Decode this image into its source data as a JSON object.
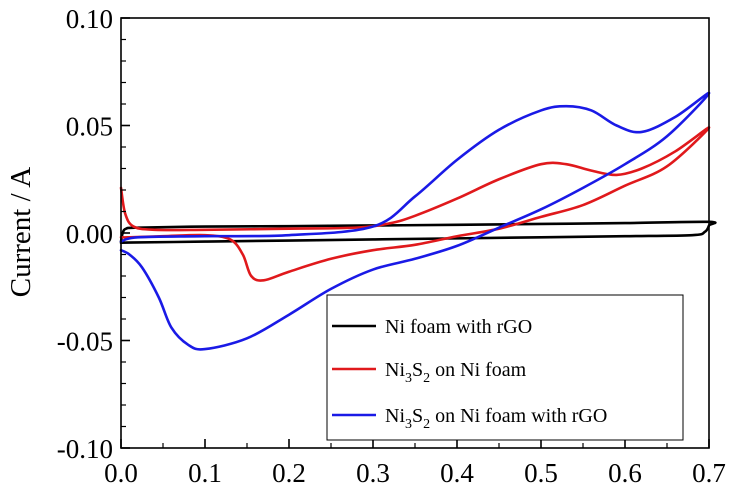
{
  "chart_data": {
    "type": "line",
    "title": "",
    "xlabel": "",
    "ylabel": "Current / A",
    "xlim": [
      0.0,
      0.7
    ],
    "ylim": [
      -0.1,
      0.1
    ],
    "x_ticks": [
      0.0,
      0.1,
      0.2,
      0.3,
      0.4,
      0.5,
      0.6,
      0.7
    ],
    "x_tick_labels": [
      "0.0",
      "0.1",
      "0.2",
      "0.3",
      "0.4",
      "0.5",
      "0.6",
      "0.7"
    ],
    "y_ticks": [
      -0.1,
      -0.05,
      0.0,
      0.05,
      0.1
    ],
    "y_tick_labels": [
      "-0.10",
      "-0.05",
      "0.00",
      "0.05",
      "0.10"
    ],
    "grid": false,
    "legend_position": "bottom-right",
    "series": [
      {
        "name": "Ni foam with rGO",
        "legend_main": "Ni foam with rGO",
        "color": "#000000",
        "points": [
          [
            0.0,
            -0.004
          ],
          [
            0.002,
            0.0
          ],
          [
            0.006,
            0.002
          ],
          [
            0.02,
            0.0025
          ],
          [
            0.1,
            0.003
          ],
          [
            0.2,
            0.0032
          ],
          [
            0.3,
            0.0035
          ],
          [
            0.4,
            0.0038
          ],
          [
            0.5,
            0.0042
          ],
          [
            0.6,
            0.0046
          ],
          [
            0.7,
            0.0052
          ],
          [
            0.7,
            0.0035
          ],
          [
            0.695,
            0.0005
          ],
          [
            0.68,
            -0.001
          ],
          [
            0.6,
            -0.0015
          ],
          [
            0.5,
            -0.002
          ],
          [
            0.4,
            -0.0025
          ],
          [
            0.3,
            -0.003
          ],
          [
            0.2,
            -0.0035
          ],
          [
            0.1,
            -0.004
          ],
          [
            0.0,
            -0.0045
          ]
        ]
      },
      {
        "name": "Ni3S2 on Ni foam",
        "legend_main": "Ni",
        "legend_sub1": "3",
        "legend_mid": "S",
        "legend_sub2": "2",
        "legend_tail": " on Ni foam",
        "color": "#e0191c",
        "points": [
          [
            0.0,
            0.021
          ],
          [
            0.005,
            0.009
          ],
          [
            0.015,
            0.003
          ],
          [
            0.04,
            0.0015
          ],
          [
            0.1,
            0.0015
          ],
          [
            0.2,
            0.002
          ],
          [
            0.28,
            0.0025
          ],
          [
            0.32,
            0.0045
          ],
          [
            0.35,
            0.008
          ],
          [
            0.4,
            0.016
          ],
          [
            0.45,
            0.025
          ],
          [
            0.5,
            0.032
          ],
          [
            0.53,
            0.032
          ],
          [
            0.56,
            0.029
          ],
          [
            0.59,
            0.027
          ],
          [
            0.62,
            0.03
          ],
          [
            0.66,
            0.038
          ],
          [
            0.7,
            0.049
          ],
          [
            0.65,
            0.031
          ],
          [
            0.6,
            0.022
          ],
          [
            0.55,
            0.013
          ],
          [
            0.5,
            0.0075
          ],
          [
            0.45,
            0.002
          ],
          [
            0.4,
            -0.0015
          ],
          [
            0.35,
            -0.0055
          ],
          [
            0.3,
            -0.008
          ],
          [
            0.25,
            -0.012
          ],
          [
            0.2,
            -0.018
          ],
          [
            0.17,
            -0.022
          ],
          [
            0.155,
            -0.02
          ],
          [
            0.145,
            -0.01
          ],
          [
            0.13,
            -0.003
          ],
          [
            0.1,
            -0.001
          ],
          [
            0.05,
            -0.0015
          ],
          [
            0.01,
            -0.002
          ],
          [
            0.0,
            -0.002
          ]
        ]
      },
      {
        "name": "Ni3S2 on Ni foam with rGO",
        "legend_main": "Ni",
        "legend_sub1": "3",
        "legend_mid": "S",
        "legend_sub2": "2",
        "legend_tail": " on Ni foam with rGO",
        "color": "#1a1ae6",
        "points": [
          [
            0.0,
            -0.004
          ],
          [
            0.02,
            -0.002
          ],
          [
            0.1,
            -0.0015
          ],
          [
            0.2,
            -0.001
          ],
          [
            0.3,
            0.003
          ],
          [
            0.35,
            0.017
          ],
          [
            0.4,
            0.034
          ],
          [
            0.45,
            0.048
          ],
          [
            0.5,
            0.057
          ],
          [
            0.53,
            0.059
          ],
          [
            0.56,
            0.057
          ],
          [
            0.59,
            0.05
          ],
          [
            0.62,
            0.047
          ],
          [
            0.66,
            0.054
          ],
          [
            0.7,
            0.065
          ],
          [
            0.65,
            0.045
          ],
          [
            0.6,
            0.032
          ],
          [
            0.55,
            0.021
          ],
          [
            0.5,
            0.011
          ],
          [
            0.45,
            0.0025
          ],
          [
            0.4,
            -0.006
          ],
          [
            0.35,
            -0.012
          ],
          [
            0.3,
            -0.017
          ],
          [
            0.25,
            -0.026
          ],
          [
            0.2,
            -0.038
          ],
          [
            0.15,
            -0.049
          ],
          [
            0.1,
            -0.054
          ],
          [
            0.08,
            -0.052
          ],
          [
            0.06,
            -0.044
          ],
          [
            0.045,
            -0.03
          ],
          [
            0.025,
            -0.016
          ],
          [
            0.01,
            -0.01
          ],
          [
            0.0,
            -0.008
          ]
        ]
      }
    ]
  }
}
